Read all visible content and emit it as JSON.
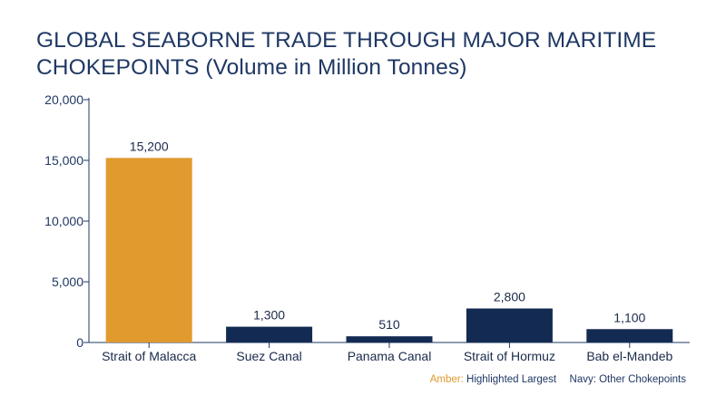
{
  "chart_data": {
    "type": "bar",
    "title": "GLOBAL SEABORNE TRADE THROUGH MAJOR MARITIME CHOKEPOINTS (Volume in Million Tonnes)",
    "categories": [
      "Strait of Malacca",
      "Suez Canal",
      "Panama Canal",
      "Strait of Hormuz",
      "Bab el-Mandeb"
    ],
    "values": [
      15200,
      1300,
      510,
      2800,
      1100
    ],
    "value_labels": [
      "15,200",
      "1,300",
      "510",
      "2,800",
      "1,100"
    ],
    "highlight_index": 0,
    "ylim": [
      0,
      20000
    ],
    "yticks": [
      0,
      5000,
      10000,
      15000,
      20000
    ],
    "ytick_labels": [
      "0",
      "5,000",
      "10,000",
      "15,000",
      "20,000"
    ],
    "xlabel": "",
    "ylabel": "",
    "grid": false,
    "colors": {
      "highlight": "#e09a2e",
      "other": "#132b52",
      "axis": "#1f3864"
    }
  },
  "legend": {
    "highlight_label": "Amber:",
    "highlight_text": "Highlighted Largest",
    "other_text": "Navy: Other Chokepoints"
  }
}
